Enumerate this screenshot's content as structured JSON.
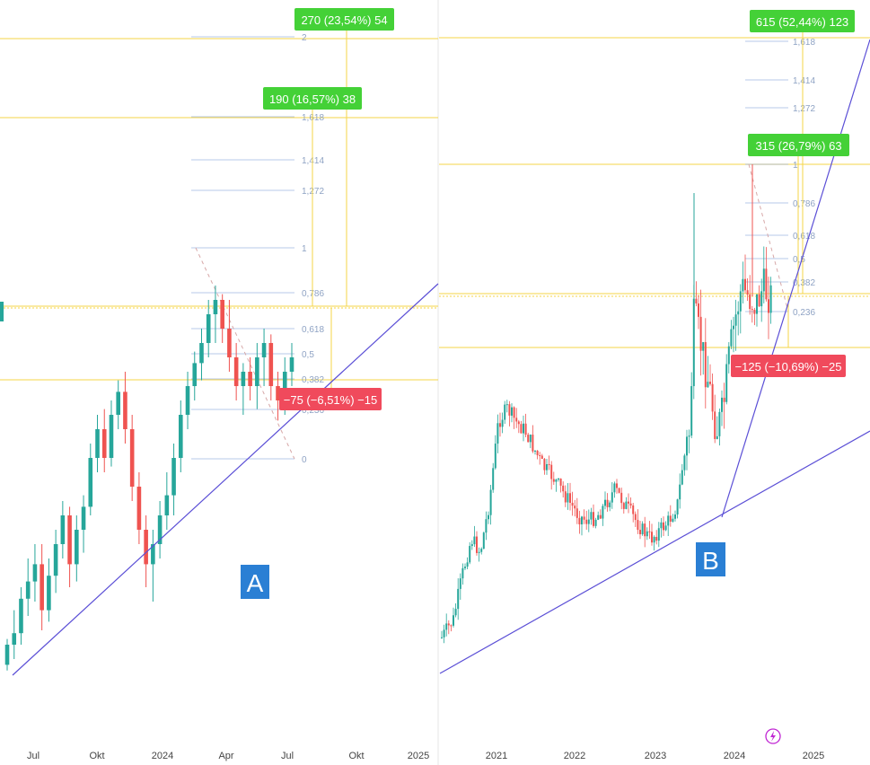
{
  "colors": {
    "up": "#26a69a",
    "down": "#ef5350",
    "fib": "#7f9ed8",
    "fib_text": "#8fa3c4",
    "hline": "#f5d547",
    "trendline": "#5b4fd6",
    "gain_box": "#44d137",
    "loss_box": "#f04a5c",
    "panel_label": "#2a7fd4",
    "divider": "#e6e6e6",
    "axis_text": "#444444",
    "lightning": "#c026d3"
  },
  "panel_a": {
    "panel_label": "A",
    "x_axis_labels": [
      "Jul",
      "Okt",
      "2024",
      "Apr",
      "Jul",
      "Okt",
      "2025"
    ],
    "fib_levels": [
      "2",
      "1,618",
      "1,414",
      "1,272",
      "1",
      "0,786",
      "0,618",
      "0,5",
      "0,382",
      "0,236",
      "0"
    ],
    "measure_labels": [
      "270 (23,54%) 54",
      "190 (16,57%) 38",
      "−75 (−6,51%) −15"
    ]
  },
  "panel_b": {
    "panel_label": "B",
    "x_axis_labels": [
      "2021",
      "2022",
      "2023",
      "2024",
      "2025"
    ],
    "fib_levels": [
      "1,618",
      "1,414",
      "1,272",
      "1",
      "0,786",
      "0,618",
      "0,5",
      "0,382",
      "0,236"
    ],
    "measure_labels": [
      "615 (52,44%) 123",
      "315 (26,79%) 63",
      "−125 (−10,69%) −25"
    ]
  },
  "chart_data": [
    {
      "type": "candlestick",
      "panel": "A",
      "x_tick_labels": [
        "Jul",
        "Okt",
        "2024",
        "Apr",
        "Jul",
        "Okt",
        "2025"
      ],
      "fibonacci_levels": [
        "2",
        "1,618",
        "1,414",
        "1,272",
        "1",
        "0,786",
        "0,618",
        "0,5",
        "0,382",
        "0,236",
        "0"
      ],
      "annotations": [
        "270 (23,54%) 54",
        "190 (16,57%) 38",
        "−75 (−6,51%) −15"
      ],
      "ohlc_relative": [
        [
          -0.97,
          -0.88,
          -0.99,
          -0.9
        ],
        [
          -0.9,
          -0.78,
          -0.95,
          -0.86
        ],
        [
          -0.86,
          -0.7,
          -0.9,
          -0.74
        ],
        [
          -0.74,
          -0.6,
          -0.8,
          -0.68
        ],
        [
          -0.68,
          -0.55,
          -0.75,
          -0.62
        ],
        [
          -0.62,
          -0.55,
          -0.85,
          -0.78
        ],
        [
          -0.78,
          -0.6,
          -0.82,
          -0.66
        ],
        [
          -0.66,
          -0.5,
          -0.72,
          -0.55
        ],
        [
          -0.55,
          -0.4,
          -0.6,
          -0.45
        ],
        [
          -0.45,
          -0.42,
          -0.7,
          -0.62
        ],
        [
          -0.62,
          -0.45,
          -0.68,
          -0.5
        ],
        [
          -0.5,
          -0.38,
          -0.58,
          -0.42
        ],
        [
          -0.42,
          -0.2,
          -0.45,
          -0.25
        ],
        [
          -0.25,
          -0.1,
          -0.3,
          -0.15
        ],
        [
          -0.15,
          -0.08,
          -0.3,
          -0.25
        ],
        [
          -0.25,
          -0.05,
          -0.28,
          -0.1
        ],
        [
          -0.1,
          0.02,
          -0.15,
          -0.02
        ],
        [
          -0.02,
          0.05,
          -0.2,
          -0.15
        ],
        [
          -0.15,
          -0.1,
          -0.4,
          -0.35
        ],
        [
          -0.35,
          -0.3,
          -0.55,
          -0.5
        ],
        [
          -0.5,
          -0.45,
          -0.7,
          -0.62
        ],
        [
          -0.62,
          -0.5,
          -0.75,
          -0.55
        ],
        [
          -0.55,
          -0.4,
          -0.6,
          -0.45
        ],
        [
          -0.45,
          -0.3,
          -0.5,
          -0.38
        ],
        [
          -0.38,
          -0.2,
          -0.45,
          -0.25
        ],
        [
          -0.25,
          -0.05,
          -0.3,
          -0.1
        ],
        [
          -0.1,
          0.05,
          -0.15,
          0
        ],
        [
          0,
          0.12,
          -0.05,
          0.08
        ],
        [
          0.08,
          0.2,
          0.02,
          0.15
        ],
        [
          0.15,
          0.3,
          0.1,
          0.25
        ],
        [
          0.25,
          0.35,
          0.15,
          0.3
        ],
        [
          0.3,
          0.32,
          0.15,
          0.2
        ],
        [
          0.2,
          0.3,
          0.05,
          0.1
        ],
        [
          0.1,
          0.15,
          -0.05,
          0
        ],
        [
          0,
          0.08,
          -0.1,
          0.05
        ],
        [
          0.05,
          0.1,
          -0.05,
          0
        ],
        [
          0,
          0.15,
          -0.08,
          0.1
        ],
        [
          0.1,
          0.2,
          0,
          0.15
        ],
        [
          0.15,
          0.18,
          -0.05,
          0
        ],
        [
          0,
          0.05,
          -0.12,
          -0.05
        ],
        [
          -0.05,
          0.1,
          -0.1,
          0.05
        ],
        [
          0.05,
          0.15,
          0,
          0.1
        ]
      ]
    },
    {
      "type": "candlestick",
      "panel": "B",
      "x_tick_labels": [
        "2021",
        "2022",
        "2023",
        "2024",
        "2025"
      ],
      "fibonacci_levels": [
        "1,618",
        "1,414",
        "1,272",
        "1",
        "0,786",
        "0,618",
        "0,5",
        "0,382",
        "0,236"
      ],
      "annotations": [
        "615 (52,44%) 123",
        "315 (26,79%) 63",
        "−125 (−10,69%) −25"
      ]
    }
  ]
}
